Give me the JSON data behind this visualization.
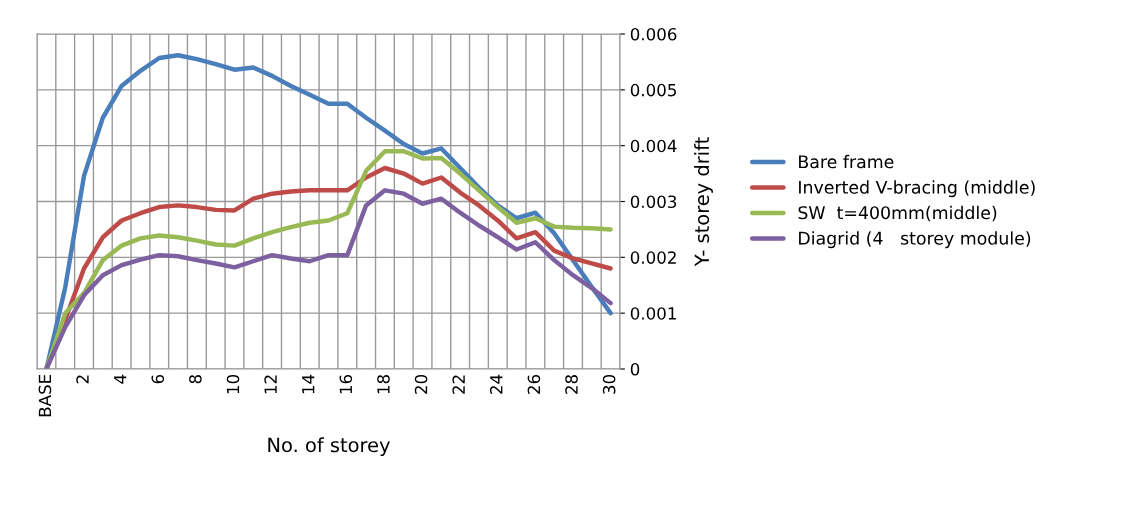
{
  "chart_data": {
    "type": "line",
    "xlabel": "No. of storey",
    "ylabel": "Y- storey drift",
    "categories": [
      "BASE",
      null,
      "2",
      null,
      "4",
      null,
      "6",
      null,
      "8",
      null,
      "10",
      null,
      "12",
      null,
      "14",
      null,
      "16",
      null,
      "18",
      null,
      "20",
      null,
      "22",
      null,
      "24",
      null,
      "26",
      null,
      "28",
      null,
      "30"
    ],
    "series": [
      {
        "name": "Bare frame",
        "color": "#4a7ebb",
        "values": [
          0,
          0.00146,
          0.00346,
          0.0045,
          0.00507,
          0.00534,
          0.00557,
          0.00562,
          0.00555,
          0.00546,
          0.00536,
          0.0054,
          0.00525,
          0.00507,
          0.00491,
          0.00475,
          0.00475,
          0.0045,
          0.00427,
          0.00403,
          0.00386,
          0.00395,
          0.0036,
          0.00325,
          0.00293,
          0.0027,
          0.0028,
          0.00243,
          0.00195,
          0.00147,
          0.001
        ]
      },
      {
        "name": "Inverted V-bracing (middle)",
        "color": "#be4b48",
        "values": [
          0,
          0.00088,
          0.0018,
          0.00236,
          0.00266,
          0.00279,
          0.0029,
          0.00293,
          0.0029,
          0.00285,
          0.00284,
          0.00305,
          0.00314,
          0.00318,
          0.0032,
          0.0032,
          0.0032,
          0.00343,
          0.0036,
          0.0035,
          0.00332,
          0.00343,
          0.00316,
          0.00293,
          0.00266,
          0.00234,
          0.00245,
          0.00212,
          0.00198,
          0.00189,
          0.0018
        ]
      },
      {
        "name": "SW  t=400mm(middle)",
        "color": "#98b954",
        "values": [
          0,
          0.001,
          0.00136,
          0.00195,
          0.00221,
          0.00234,
          0.00239,
          0.00236,
          0.0023,
          0.00223,
          0.00221,
          0.00234,
          0.00245,
          0.00254,
          0.00262,
          0.00266,
          0.00279,
          0.00355,
          0.0039,
          0.0039,
          0.00377,
          0.00378,
          0.0035,
          0.0032,
          0.0029,
          0.00262,
          0.0027,
          0.00255,
          0.00253,
          0.00252,
          0.0025
        ]
      },
      {
        "name": "Diagrid (4   storey module)",
        "color": "#7d60a0",
        "values": [
          0,
          0.00075,
          0.00132,
          0.00168,
          0.00186,
          0.00196,
          0.00204,
          0.00202,
          0.00195,
          0.00189,
          0.00182,
          0.00193,
          0.00204,
          0.00198,
          0.00193,
          0.00204,
          0.00204,
          0.00293,
          0.0032,
          0.00314,
          0.00296,
          0.00305,
          0.0028,
          0.00257,
          0.00236,
          0.00214,
          0.00227,
          0.00195,
          0.00168,
          0.00145,
          0.00118
        ]
      }
    ],
    "ylim": [
      0,
      0.006
    ],
    "yticks": [
      0,
      0.001,
      0.002,
      0.003,
      0.004,
      0.005,
      0.006
    ],
    "grid": true,
    "legend": "right",
    "marker": "none",
    "line_style": "solid"
  }
}
